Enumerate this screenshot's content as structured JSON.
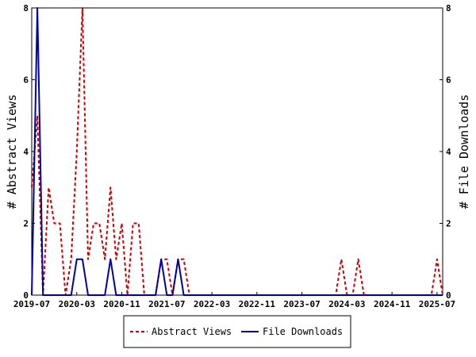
{
  "chart_data": {
    "type": "line",
    "x_ticks": [
      "2019-07",
      "2020-03",
      "2020-11",
      "2021-07",
      "2022-03",
      "2022-11",
      "2023-07",
      "2024-03",
      "2024-11",
      "2025-07"
    ],
    "x_range": [
      "2019-07",
      "2025-08"
    ],
    "y_left_label": "# Abstract Views",
    "y_right_label": "# File Downloads",
    "y_ticks": [
      "0",
      "2",
      "4",
      "6",
      "8"
    ],
    "ylim": [
      0,
      8
    ],
    "legend_position": "bottom",
    "series": [
      {
        "name": "Abstract Views",
        "style": "dashed",
        "color": "#cc0000",
        "points": [
          [
            "2019-07",
            3
          ],
          [
            "2019-08",
            5
          ],
          [
            "2019-09",
            0
          ],
          [
            "2019-10",
            3
          ],
          [
            "2019-11",
            2
          ],
          [
            "2019-12",
            2
          ],
          [
            "2020-01",
            0
          ],
          [
            "2020-02",
            1
          ],
          [
            "2020-03",
            4
          ],
          [
            "2020-04",
            8
          ],
          [
            "2020-05",
            1
          ],
          [
            "2020-06",
            2
          ],
          [
            "2020-07",
            2
          ],
          [
            "2020-08",
            1
          ],
          [
            "2020-09",
            3
          ],
          [
            "2020-10",
            1
          ],
          [
            "2020-11",
            2
          ],
          [
            "2020-12",
            0
          ],
          [
            "2021-01",
            2
          ],
          [
            "2021-02",
            2
          ],
          [
            "2021-03",
            0
          ],
          [
            "2021-04",
            0
          ],
          [
            "2021-05",
            0
          ],
          [
            "2021-06",
            1
          ],
          [
            "2021-07",
            1
          ],
          [
            "2021-08",
            0
          ],
          [
            "2021-09",
            1
          ],
          [
            "2021-10",
            1
          ],
          [
            "2021-11",
            0
          ],
          [
            "2024-01",
            0
          ],
          [
            "2024-02",
            1
          ],
          [
            "2024-03",
            0
          ],
          [
            "2024-04",
            0
          ],
          [
            "2024-05",
            1
          ],
          [
            "2024-06",
            0
          ],
          [
            "2025-06",
            0
          ],
          [
            "2025-07",
            1
          ],
          [
            "2025-08",
            0
          ]
        ]
      },
      {
        "name": "File Downloads",
        "style": "solid",
        "color": "#0000aa",
        "points": [
          [
            "2019-07",
            0
          ],
          [
            "2019-08",
            8
          ],
          [
            "2019-09",
            0
          ],
          [
            "2019-10",
            0
          ],
          [
            "2019-11",
            0
          ],
          [
            "2019-12",
            0
          ],
          [
            "2020-01",
            0
          ],
          [
            "2020-02",
            0
          ],
          [
            "2020-03",
            1
          ],
          [
            "2020-04",
            1
          ],
          [
            "2020-05",
            0
          ],
          [
            "2020-06",
            0
          ],
          [
            "2020-07",
            0
          ],
          [
            "2020-08",
            0
          ],
          [
            "2020-09",
            1
          ],
          [
            "2020-10",
            0
          ],
          [
            "2020-11",
            0
          ],
          [
            "2020-12",
            0
          ],
          [
            "2021-01",
            0
          ],
          [
            "2021-02",
            0
          ],
          [
            "2021-03",
            0
          ],
          [
            "2021-04",
            0
          ],
          [
            "2021-05",
            0
          ],
          [
            "2021-06",
            1
          ],
          [
            "2021-07",
            0
          ],
          [
            "2021-08",
            0
          ],
          [
            "2021-09",
            1
          ],
          [
            "2021-10",
            0
          ],
          [
            "2021-11",
            0
          ],
          [
            "2025-08",
            0
          ]
        ]
      }
    ]
  }
}
